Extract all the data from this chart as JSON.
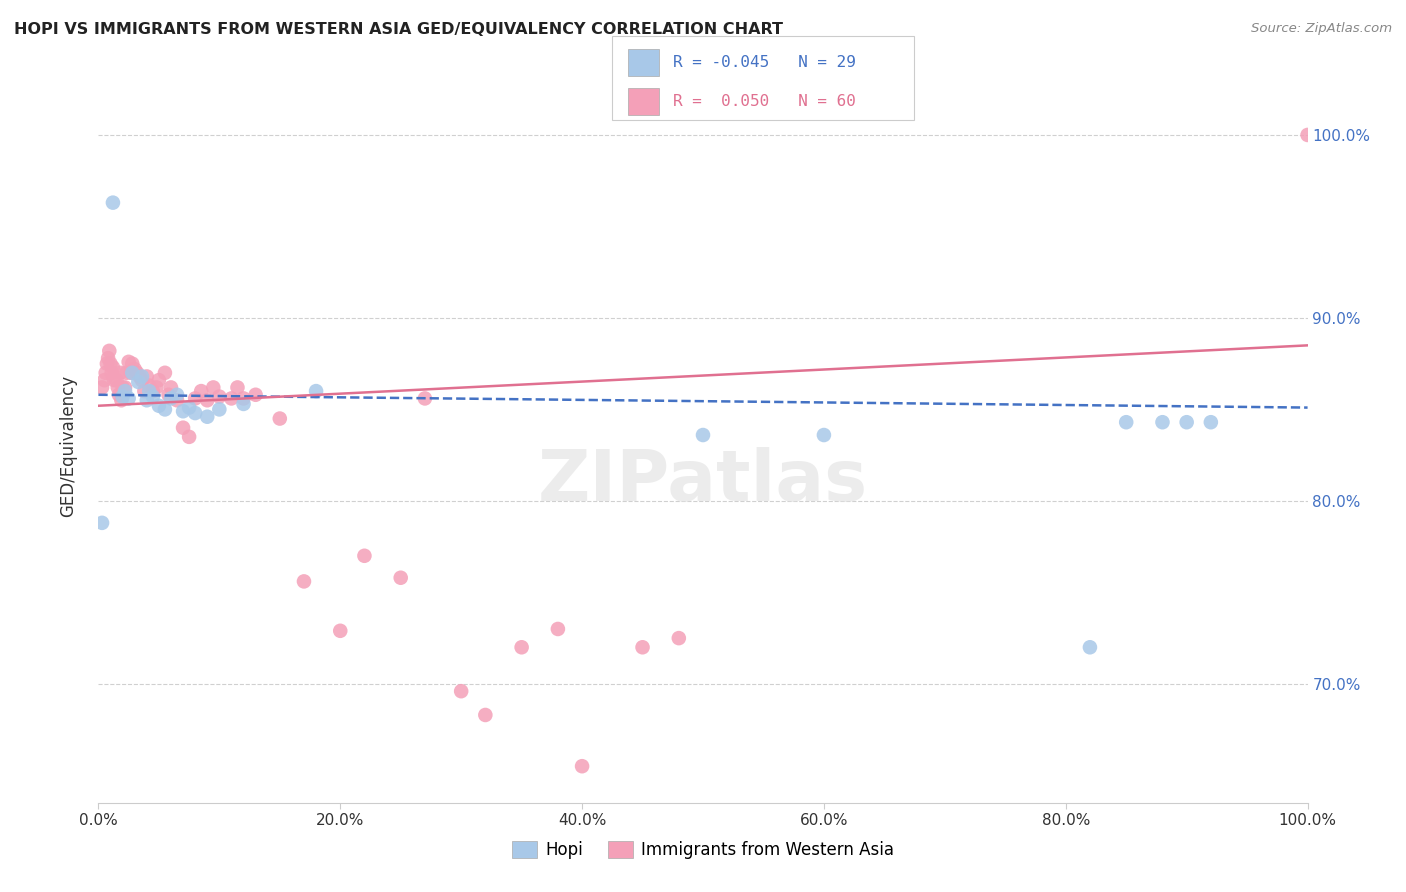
{
  "title": "HOPI VS IMMIGRANTS FROM WESTERN ASIA GED/EQUIVALENCY CORRELATION CHART",
  "source": "Source: ZipAtlas.com",
  "ylabel": "GED/Equivalency",
  "hopi_color": "#a8c8e8",
  "imm_color": "#f4a0b8",
  "hopi_line_color": "#4472c4",
  "imm_line_color": "#e07090",
  "background_color": "#ffffff",
  "hopi_x": [
    0.003,
    0.012,
    0.02,
    0.022,
    0.025,
    0.028,
    0.033,
    0.036,
    0.04,
    0.042,
    0.045,
    0.05,
    0.055,
    0.06,
    0.065,
    0.07,
    0.075,
    0.08,
    0.09,
    0.1,
    0.12,
    0.18,
    0.5,
    0.6,
    0.82,
    0.85,
    0.88,
    0.9,
    0.92
  ],
  "hopi_y": [
    0.788,
    0.963,
    0.857,
    0.86,
    0.856,
    0.87,
    0.865,
    0.868,
    0.855,
    0.86,
    0.857,
    0.852,
    0.85,
    0.856,
    0.858,
    0.849,
    0.851,
    0.848,
    0.846,
    0.85,
    0.853,
    0.86,
    0.836,
    0.836,
    0.72,
    0.843,
    0.843,
    0.843,
    0.843
  ],
  "imm_x": [
    0.003,
    0.005,
    0.006,
    0.007,
    0.008,
    0.009,
    0.01,
    0.011,
    0.012,
    0.013,
    0.015,
    0.016,
    0.017,
    0.018,
    0.019,
    0.02,
    0.022,
    0.023,
    0.025,
    0.027,
    0.028,
    0.03,
    0.032,
    0.034,
    0.036,
    0.038,
    0.04,
    0.042,
    0.045,
    0.048,
    0.05,
    0.055,
    0.058,
    0.06,
    0.065,
    0.07,
    0.075,
    0.08,
    0.085,
    0.09,
    0.095,
    0.1,
    0.11,
    0.115,
    0.12,
    0.13,
    0.15,
    0.17,
    0.2,
    0.22,
    0.25,
    0.27,
    0.3,
    0.32,
    0.35,
    0.38,
    0.4,
    0.45,
    0.48,
    1.0
  ],
  "imm_y": [
    0.862,
    0.866,
    0.87,
    0.875,
    0.878,
    0.882,
    0.875,
    0.87,
    0.873,
    0.866,
    0.866,
    0.862,
    0.858,
    0.87,
    0.855,
    0.862,
    0.862,
    0.87,
    0.876,
    0.87,
    0.875,
    0.872,
    0.87,
    0.868,
    0.866,
    0.86,
    0.868,
    0.863,
    0.86,
    0.862,
    0.866,
    0.87,
    0.858,
    0.862,
    0.855,
    0.84,
    0.835,
    0.856,
    0.86,
    0.855,
    0.862,
    0.857,
    0.856,
    0.862,
    0.856,
    0.858,
    0.845,
    0.756,
    0.729,
    0.77,
    0.758,
    0.856,
    0.696,
    0.683,
    0.72,
    0.73,
    0.655,
    0.72,
    0.725,
    1.0
  ],
  "ylim_min": 0.635,
  "ylim_max": 1.025,
  "xlim_min": 0.0,
  "xlim_max": 1.0,
  "y_tick_positions": [
    0.7,
    0.8,
    0.9,
    1.0
  ],
  "y_tick_labels": [
    "70.0%",
    "80.0%",
    "90.0%",
    "100.0%"
  ],
  "x_tick_positions": [
    0.0,
    0.2,
    0.4,
    0.6,
    0.8,
    1.0
  ],
  "x_tick_labels": [
    "0.0%",
    "20.0%",
    "40.0%",
    "60.0%",
    "80.0%",
    "100.0%"
  ],
  "legend_r_hopi": "R = -0.045",
  "legend_n_hopi": "N = 29",
  "legend_r_imm": "R =  0.050",
  "legend_n_imm": "N = 60",
  "watermark": "ZIPatlas"
}
